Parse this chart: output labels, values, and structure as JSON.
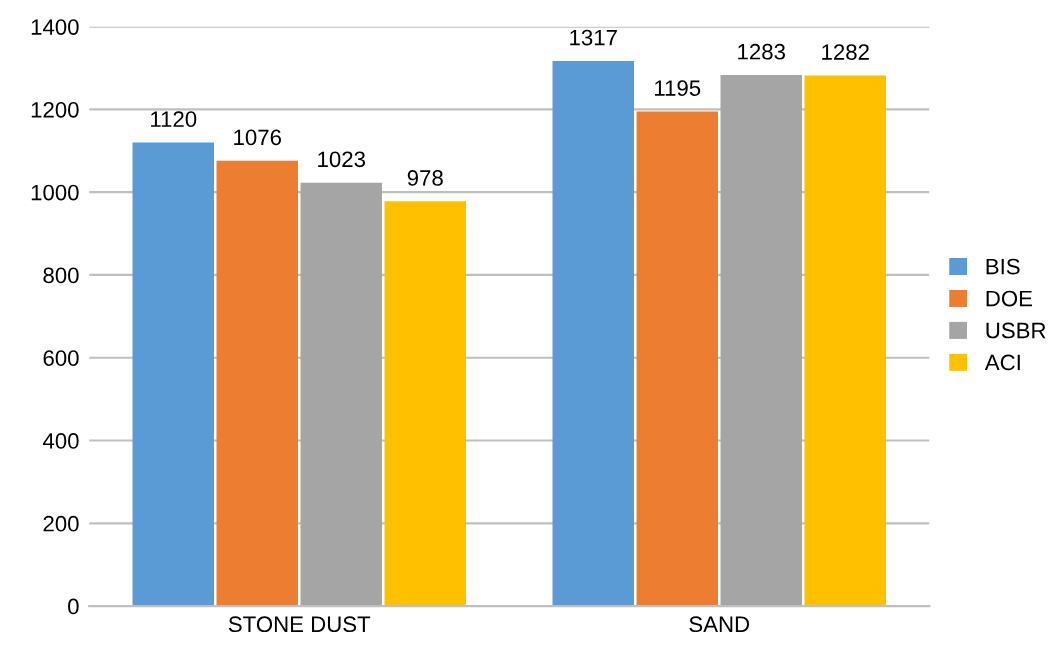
{
  "chart_data": {
    "type": "bar",
    "categories": [
      "STONE DUST",
      "SAND"
    ],
    "series": [
      {
        "name": "BIS",
        "color": "#5b9bd5",
        "values": [
          1120,
          1317
        ]
      },
      {
        "name": "DOE",
        "color": "#ed7d31",
        "values": [
          1076,
          1195
        ]
      },
      {
        "name": "USBR",
        "color": "#a5a5a5",
        "values": [
          1023,
          1283
        ]
      },
      {
        "name": "ACI",
        "color": "#ffc000",
        "values": [
          978,
          1282
        ]
      }
    ],
    "ylim": [
      0,
      1400
    ],
    "yticks": [
      0,
      200,
      400,
      600,
      800,
      1000,
      1200,
      1400
    ],
    "grid": "y",
    "legend": "right",
    "data_labels": true
  }
}
